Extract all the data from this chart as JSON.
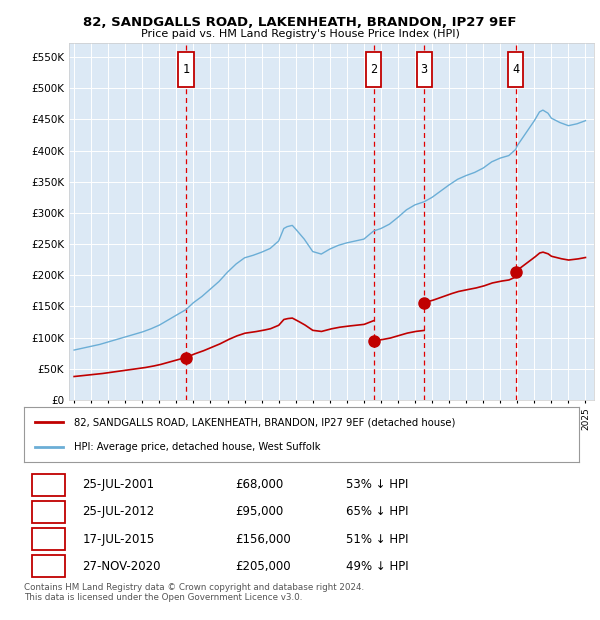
{
  "title": "82, SANDGALLS ROAD, LAKENHEATH, BRANDON, IP27 9EF",
  "subtitle": "Price paid vs. HM Land Registry's House Price Index (HPI)",
  "plot_bg_color": "#dce9f5",
  "yticks": [
    0,
    50000,
    100000,
    150000,
    200000,
    250000,
    300000,
    350000,
    400000,
    450000,
    500000,
    550000
  ],
  "ytick_labels": [
    "£0",
    "£50K",
    "£100K",
    "£150K",
    "£200K",
    "£250K",
    "£300K",
    "£350K",
    "£400K",
    "£450K",
    "£500K",
    "£550K"
  ],
  "xlim_start": 1994.7,
  "xlim_end": 2025.5,
  "ylim_min": 0,
  "ylim_max": 572000,
  "sale_dates": [
    2001.57,
    2012.57,
    2015.54,
    2020.91
  ],
  "sale_prices": [
    68000,
    95000,
    156000,
    205000
  ],
  "sale_labels": [
    "1",
    "2",
    "3",
    "4"
  ],
  "hpi_color": "#6baed6",
  "sale_color": "#c00000",
  "vline_color": "#e00000",
  "legend_entries": [
    "82, SANDGALLS ROAD, LAKENHEATH, BRANDON, IP27 9EF (detached house)",
    "HPI: Average price, detached house, West Suffolk"
  ],
  "table_rows": [
    [
      "1",
      "25-JUL-2001",
      "£68,000",
      "53% ↓ HPI"
    ],
    [
      "2",
      "25-JUL-2012",
      "£95,000",
      "65% ↓ HPI"
    ],
    [
      "3",
      "17-JUL-2015",
      "£156,000",
      "51% ↓ HPI"
    ],
    [
      "4",
      "27-NOV-2020",
      "£205,000",
      "49% ↓ HPI"
    ]
  ],
  "footer": "Contains HM Land Registry data © Crown copyright and database right 2024.\nThis data is licensed under the Open Government Licence v3.0."
}
